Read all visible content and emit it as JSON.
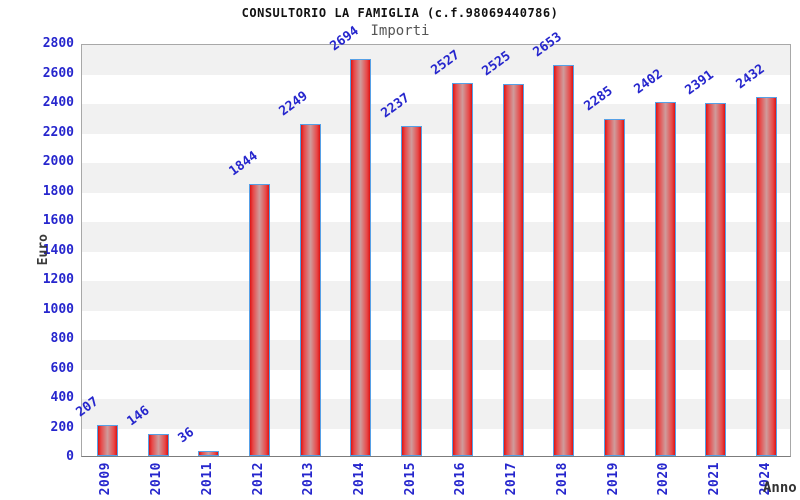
{
  "chart_data": {
    "type": "bar",
    "title": "CONSULTORIO LA FAMIGLIA (c.f.98069440786)",
    "subtitle": "Importi",
    "xlabel": "Anno",
    "ylabel": "Euro",
    "categories": [
      "2009",
      "2010",
      "2011",
      "2012",
      "2013",
      "2014",
      "2015",
      "2016",
      "2017",
      "2018",
      "2019",
      "2020",
      "2021",
      "2024"
    ],
    "values": [
      207,
      146,
      36,
      1844,
      2249,
      2694,
      2237,
      2527,
      2525,
      2653,
      2285,
      2402,
      2391,
      2432
    ],
    "ylim": [
      0,
      2800
    ],
    "ytick_step": 200,
    "yticks": [
      0,
      200,
      400,
      600,
      800,
      1000,
      1200,
      1400,
      1600,
      1800,
      2000,
      2200,
      2400,
      2600,
      2800
    ],
    "grid": "alternating-horizontal-bands",
    "legend": "none",
    "colors": {
      "tick_text": "#2626cd",
      "value_label_text": "#2626cd",
      "bar_edge": "#dd1414",
      "bar_center": "#cf9c9c",
      "bar_border": "#56a0e6",
      "band_gray": "#f1f1f1",
      "band_white": "#ffffff",
      "plot_border": "#a8a8a8",
      "title_text": "#111111",
      "subtitle_text": "#555555",
      "axis_label_text": "#3a3a3a"
    }
  }
}
